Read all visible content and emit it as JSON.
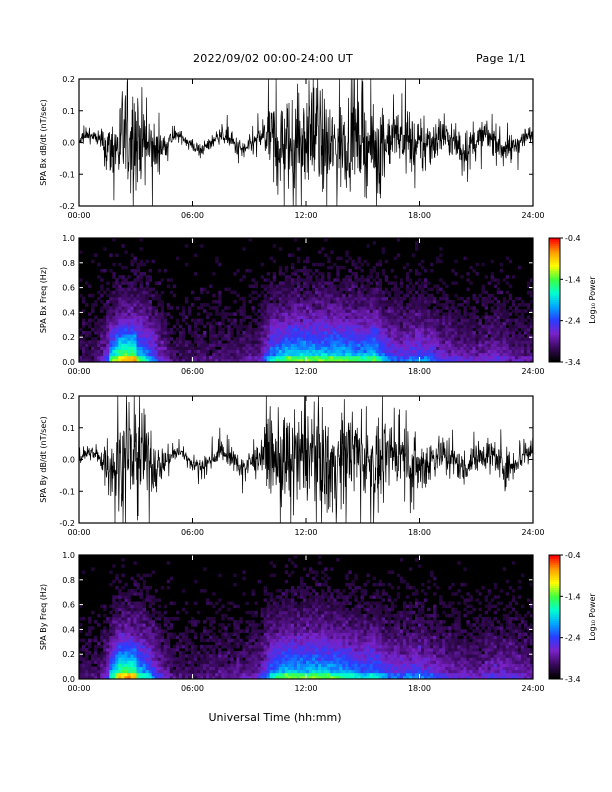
{
  "header": {
    "title": "2022/09/02  00:00-24:00 UT",
    "page": "Page 1/1"
  },
  "xlabel": "Universal Time (hh:mm)",
  "colorbar": {
    "label": "Log₁₀ Power",
    "ticks": [
      "-0.4",
      "-1.4",
      "-2.4",
      "-3.4"
    ],
    "range": [
      -3.4,
      -0.4
    ],
    "colors": [
      "#000000",
      "#3a0a5e",
      "#7a22c8",
      "#2a3cff",
      "#00a8ff",
      "#00ffd0",
      "#40ff40",
      "#ffff00",
      "#ffa000",
      "#ff0000"
    ]
  },
  "chart_data": [
    {
      "type": "line",
      "ylabel": "SPA Bx dB/dt (nT/sec)",
      "xlim": [
        0,
        24
      ],
      "ylim": [
        -0.2,
        0.2
      ],
      "xticks": [
        "00:00",
        "06:00",
        "12:00",
        "18:00",
        "24:00"
      ],
      "yticks": [
        "0.2",
        "0.1",
        "0.0",
        "-0.1",
        "-0.2"
      ],
      "amplitude_envelope": {
        "hours": [
          0,
          1,
          1.7,
          2.2,
          3,
          3.6,
          4.2,
          5,
          6,
          8,
          9.5,
          10.2,
          11,
          12,
          13,
          14,
          15,
          15.6,
          16.3,
          17,
          18,
          18.6,
          19,
          20,
          21,
          22,
          23,
          24
        ],
        "amplitude": [
          0.03,
          0.035,
          0.15,
          0.25,
          0.25,
          0.2,
          0.1,
          0.03,
          0.03,
          0.04,
          0.06,
          0.2,
          0.25,
          0.25,
          0.25,
          0.25,
          0.22,
          0.25,
          0.15,
          0.12,
          0.15,
          0.14,
          0.1,
          0.08,
          0.07,
          0.09,
          0.06,
          0.05
        ]
      }
    },
    {
      "type": "heatmap",
      "ylabel": "SPA Bx Freq (Hz)",
      "xlim": [
        0,
        24
      ],
      "ylim": [
        0,
        1
      ],
      "xticks": [
        "00:00",
        "06:00",
        "12:00",
        "18:00",
        "24:00"
      ],
      "yticks": [
        "1.0",
        "0.8",
        "0.6",
        "0.4",
        "0.2",
        "0.0"
      ],
      "zlim": [
        -3.4,
        -0.4
      ]
    },
    {
      "type": "line",
      "ylabel": "SPA By dB/dt (nT/sec)",
      "xlim": [
        0,
        24
      ],
      "ylim": [
        -0.2,
        0.2
      ],
      "xticks": [
        "00:00",
        "06:00",
        "12:00",
        "18:00",
        "24:00"
      ],
      "yticks": [
        "0.2",
        "0.1",
        "0.0",
        "-0.1",
        "-0.2"
      ],
      "amplitude_envelope": {
        "hours": [
          0,
          1,
          1.7,
          2.2,
          3,
          3.6,
          4.2,
          5,
          6,
          8,
          9.5,
          10.2,
          11,
          12,
          13,
          14,
          15,
          15.6,
          16.3,
          17,
          18,
          18.6,
          19,
          20,
          21,
          22,
          23,
          24
        ],
        "amplitude": [
          0.03,
          0.035,
          0.12,
          0.25,
          0.25,
          0.2,
          0.1,
          0.04,
          0.03,
          0.05,
          0.07,
          0.2,
          0.25,
          0.25,
          0.25,
          0.22,
          0.18,
          0.2,
          0.14,
          0.13,
          0.14,
          0.12,
          0.1,
          0.08,
          0.07,
          0.1,
          0.08,
          0.06
        ]
      }
    },
    {
      "type": "heatmap",
      "ylabel": "SPA By Freq (Hz)",
      "xlim": [
        0,
        24
      ],
      "ylim": [
        0,
        1
      ],
      "xticks": [
        "00:00",
        "06:00",
        "12:00",
        "18:00",
        "24:00"
      ],
      "yticks": [
        "1.0",
        "0.8",
        "0.6",
        "0.4",
        "0.2",
        "0.0"
      ],
      "zlim": [
        -3.4,
        -0.4
      ]
    }
  ]
}
